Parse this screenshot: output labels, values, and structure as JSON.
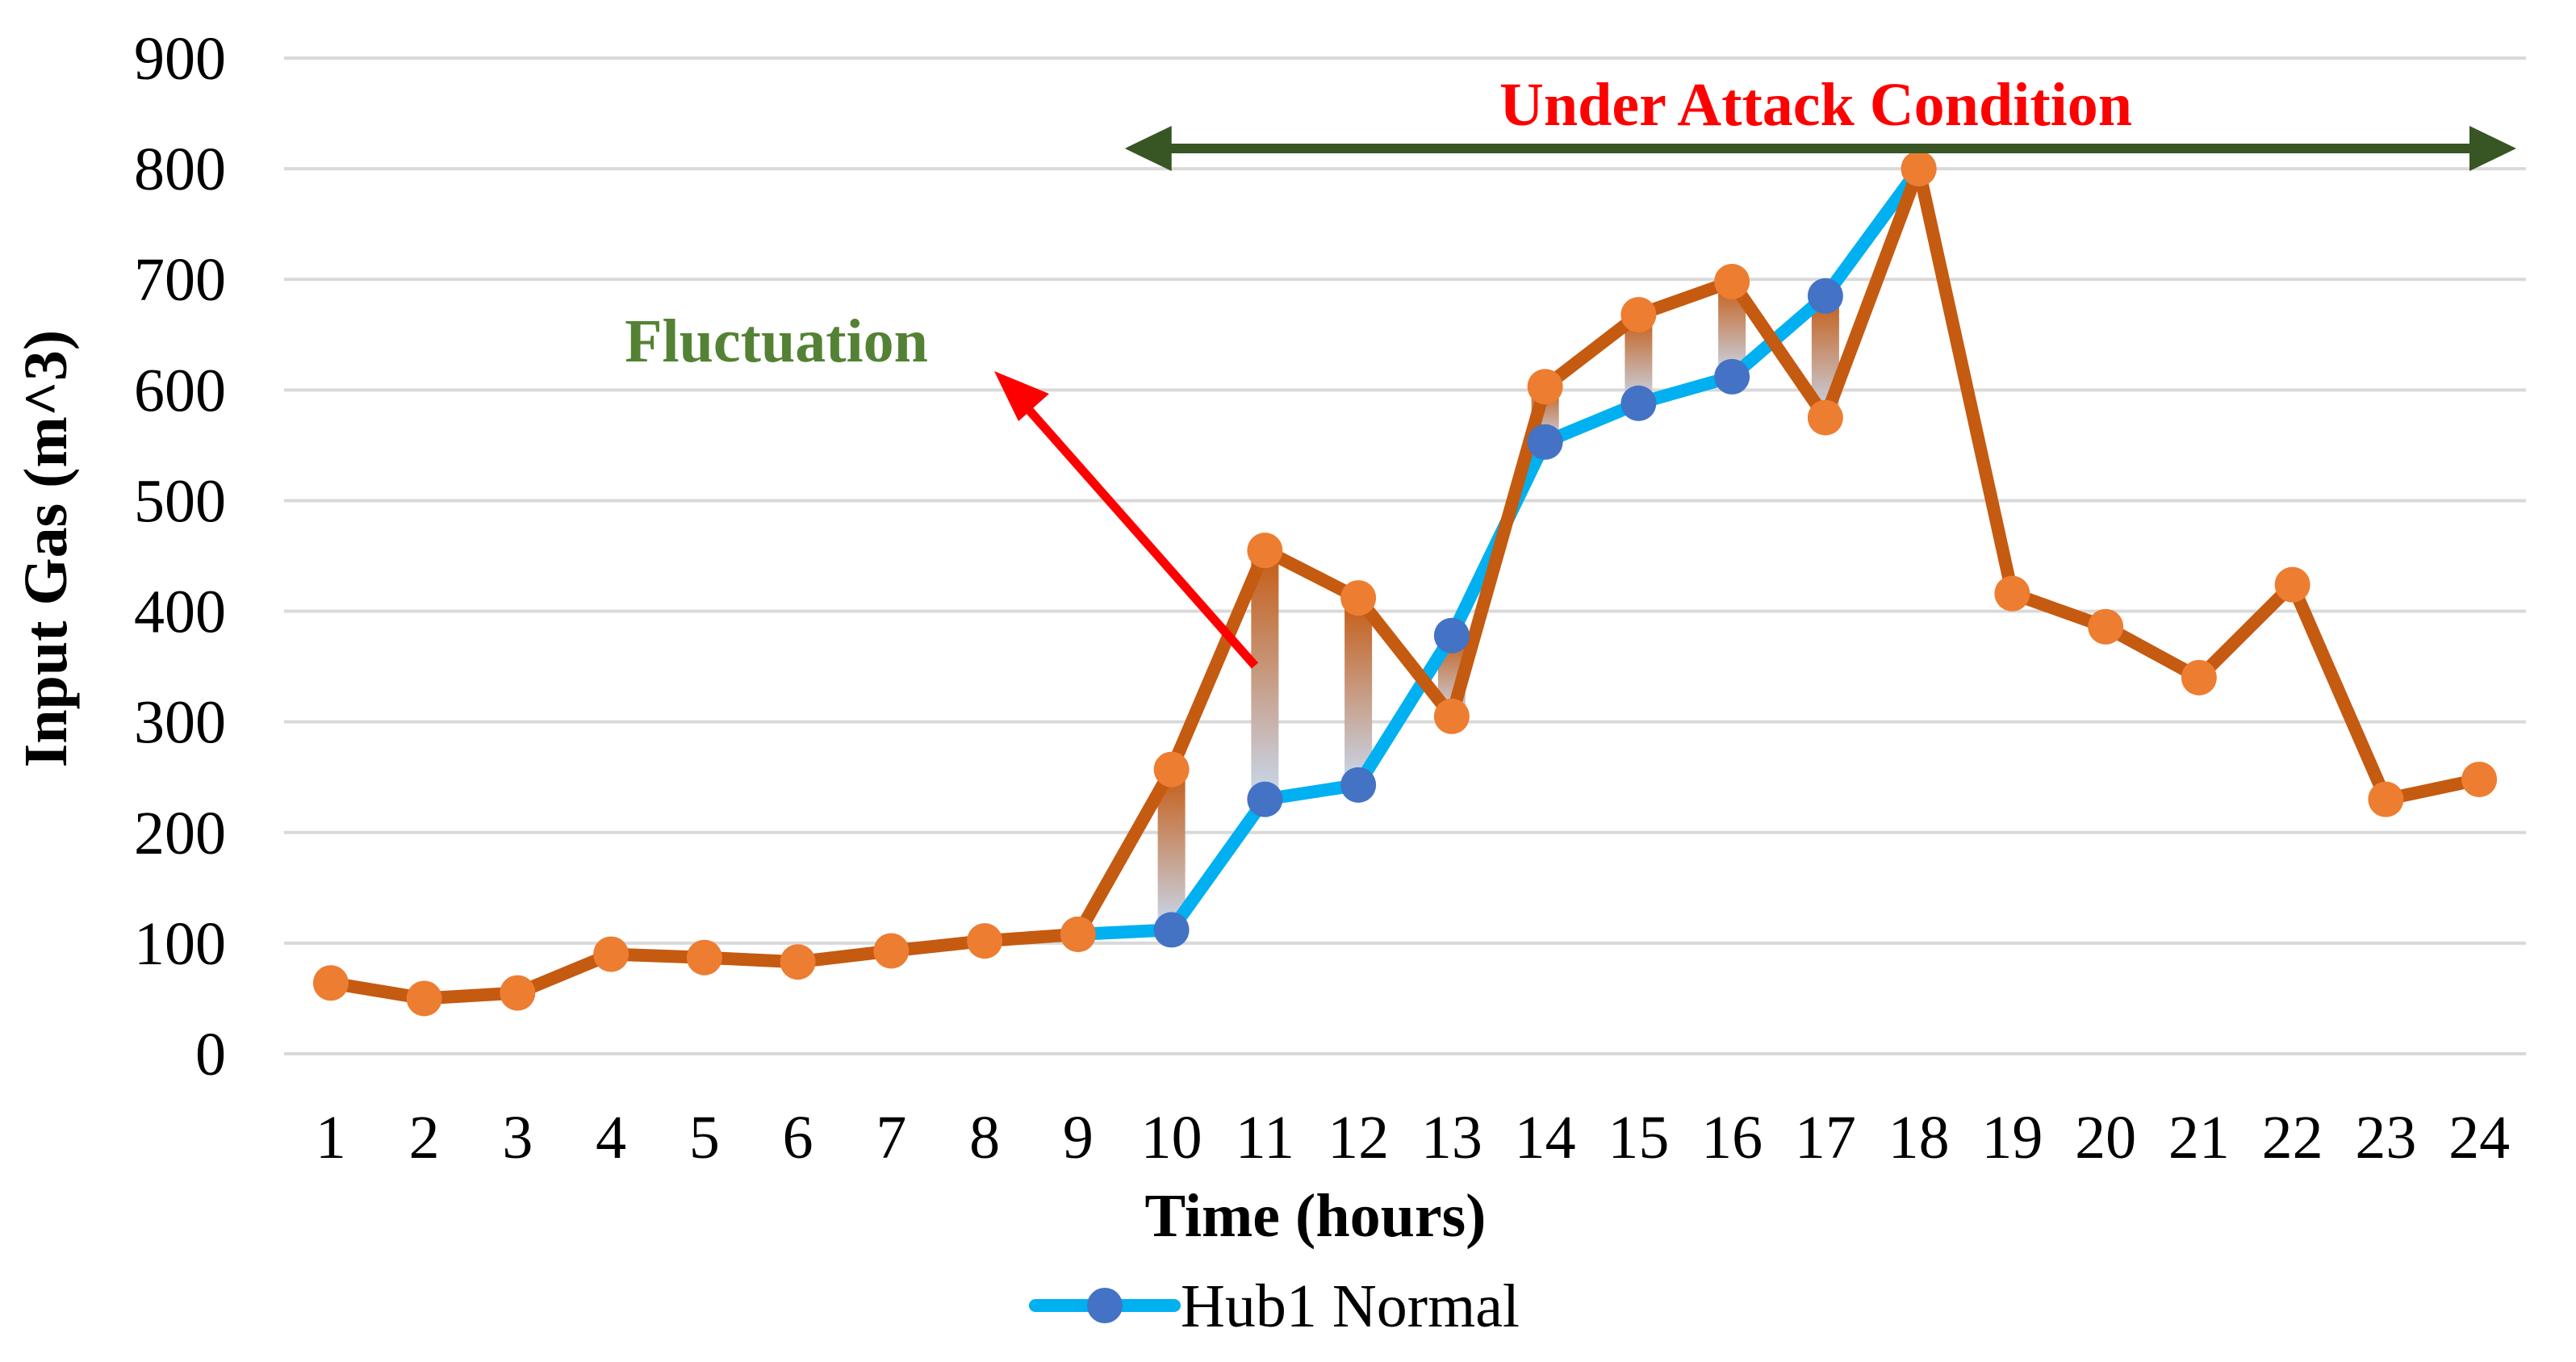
{
  "chart_data": {
    "type": "line",
    "title": "",
    "xlabel": "Time (hours)",
    "ylabel": "Input Gas (m^3)",
    "ylim": [
      0,
      900
    ],
    "yticks": [
      0,
      100,
      200,
      300,
      400,
      500,
      600,
      700,
      800,
      900
    ],
    "grid": true,
    "legend_position": "bottom",
    "x": [
      1,
      2,
      3,
      4,
      5,
      6,
      7,
      8,
      9,
      10,
      11,
      12,
      13,
      14,
      15,
      16,
      17,
      18,
      19,
      20,
      21,
      22,
      23,
      24
    ],
    "series": [
      {
        "name": "Hub1 Normal",
        "color": "#00b0f0",
        "marker_color": "#4472c4",
        "values": [
          null,
          null,
          null,
          null,
          null,
          null,
          null,
          null,
          108,
          112,
          230,
          243,
          378,
          553,
          588,
          612,
          685,
          800,
          null,
          null,
          null,
          null,
          null,
          null
        ]
      },
      {
        "name": "",
        "color": "#c55a11",
        "marker_color": "#ed7d31",
        "values": [
          64,
          50,
          55,
          90,
          87,
          83,
          93,
          102,
          108,
          257,
          455,
          412,
          305,
          603,
          668,
          698,
          575,
          800,
          416,
          386,
          340,
          424,
          230,
          248
        ]
      }
    ],
    "annotations": {
      "attack_label": "Under Attack Condition",
      "attack_label_color": "#ff0000",
      "attack_arrow_color": "#375623",
      "attack_range": [
        9.5,
        24.5
      ],
      "fluctuation_label": "Fluctuation",
      "fluctuation_label_color": "#548235",
      "fluctuation_arrow_color": "#ff0000",
      "fluctuation_bars_x": [
        10,
        11,
        12,
        13,
        14,
        15,
        16,
        17
      ]
    }
  }
}
